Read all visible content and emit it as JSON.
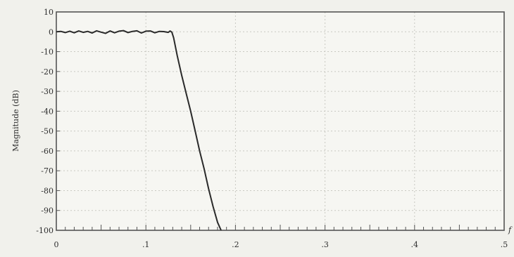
{
  "chart_data": {
    "type": "line",
    "title": "",
    "xlabel": "f",
    "ylabel": "Magnitude (dB)",
    "xlim": [
      0,
      0.5
    ],
    "ylim": [
      -100,
      10
    ],
    "xticks": [
      0,
      0.1,
      0.2,
      0.3,
      0.4,
      0.5
    ],
    "xtick_labels": [
      "0",
      ".1",
      ".2",
      ".3",
      ".4",
      ".5"
    ],
    "yticks": [
      10,
      0,
      -10,
      -20,
      -30,
      -40,
      -50,
      -60,
      -70,
      -80,
      -90,
      -100
    ],
    "ytick_labels": [
      "10",
      "0",
      "-10",
      "-20",
      "-30",
      "-40",
      "-50",
      "-60",
      "-70",
      "-80",
      "-90",
      "-100"
    ],
    "grid": true,
    "series": [
      {
        "x": [
          0,
          0.005,
          0.01,
          0.015,
          0.02,
          0.025,
          0.03,
          0.035,
          0.04,
          0.045,
          0.05,
          0.055,
          0.06,
          0.065,
          0.07,
          0.075,
          0.08,
          0.085,
          0.09,
          0.095,
          0.1,
          0.105,
          0.11,
          0.115,
          0.12,
          0.125,
          0.127,
          0.129,
          0.131,
          0.135,
          0.14,
          0.145,
          0.15,
          0.155,
          0.16,
          0.165,
          0.17,
          0.175,
          0.18,
          0.184
        ],
        "y": [
          0,
          0.2,
          -0.4,
          0.3,
          -0.5,
          0.4,
          -0.3,
          0.2,
          -0.6,
          0.5,
          -0.2,
          -0.8,
          0.4,
          -0.5,
          0.3,
          0.6,
          -0.4,
          0.2,
          0.5,
          -0.6,
          0.3,
          0.4,
          -0.5,
          0.2,
          0.1,
          -0.3,
          0.4,
          -0.2,
          -3,
          -12,
          -22,
          -31,
          -40,
          -50,
          -60,
          -69,
          -79,
          -88,
          -96,
          -100
        ]
      }
    ]
  }
}
